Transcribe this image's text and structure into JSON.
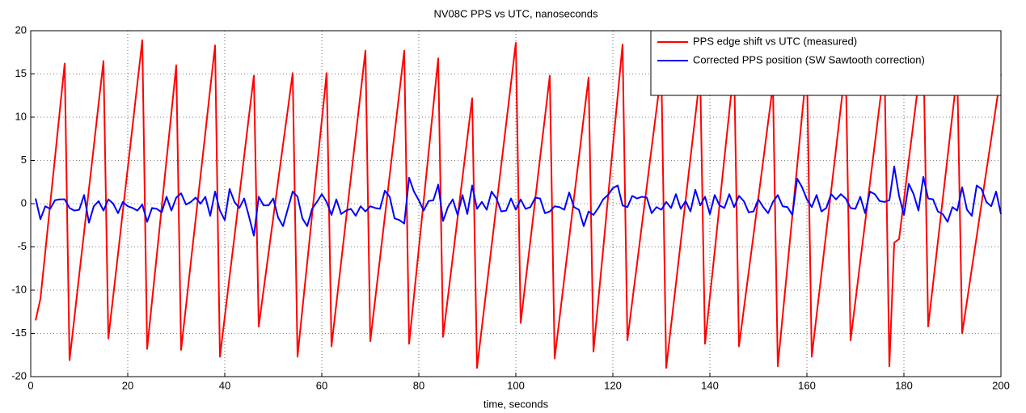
{
  "chart_data": {
    "type": "line",
    "title": "NV08C PPS vs UTC, nanoseconds",
    "xlabel": "time, seconds",
    "x": [
      1,
      2,
      3,
      4,
      5,
      6,
      7,
      8,
      9,
      10,
      11,
      12,
      13,
      14,
      15,
      16,
      17,
      18,
      19,
      20,
      21,
      22,
      23,
      24,
      25,
      26,
      27,
      28,
      29,
      30,
      31,
      32,
      33,
      34,
      35,
      36,
      37,
      38,
      39,
      40,
      41,
      42,
      43,
      44,
      45,
      46,
      47,
      48,
      49,
      50,
      51,
      52,
      53,
      54,
      55,
      56,
      57,
      58,
      59,
      60,
      61,
      62,
      63,
      64,
      65,
      66,
      67,
      68,
      69,
      70,
      71,
      72,
      73,
      74,
      75,
      76,
      77,
      78,
      79,
      80,
      81,
      82,
      83,
      84,
      85,
      86,
      87,
      88,
      89,
      90,
      91,
      92,
      93,
      94,
      95,
      96,
      97,
      98,
      99,
      100,
      101,
      102,
      103,
      104,
      105,
      106,
      107,
      108,
      109,
      110,
      111,
      112,
      113,
      114,
      115,
      116,
      117,
      118,
      119,
      120,
      121,
      122,
      123,
      124,
      125,
      126,
      127,
      128,
      129,
      130,
      131,
      132,
      133,
      134,
      135,
      136,
      137,
      138,
      139,
      140,
      141,
      142,
      143,
      144,
      145,
      146,
      147,
      148,
      149,
      150,
      151,
      152,
      153,
      154,
      155,
      156,
      157,
      158,
      159,
      160,
      161,
      162,
      163,
      164,
      165,
      166,
      167,
      168,
      169,
      170,
      171,
      172,
      173,
      174,
      175,
      176,
      177,
      178,
      179,
      180,
      181,
      182,
      183,
      184,
      185,
      186,
      187,
      188,
      189,
      190,
      191,
      192,
      193,
      194,
      195,
      196,
      197,
      198,
      199,
      200
    ],
    "series": [
      {
        "name": "PPS edge shift vs UTC (measured)",
        "color": "#ff0000",
        "values": [
          -13.5,
          -11.0,
          -5.6,
          -0.1,
          5.3,
          10.8,
          16.2,
          -18.1,
          -13.2,
          -8.2,
          -3.3,
          1.7,
          6.6,
          11.6,
          16.5,
          -15.6,
          -10.7,
          -5.8,
          -0.8,
          4.1,
          9.0,
          14.0,
          18.9,
          -16.8,
          -11.3,
          -5.9,
          -0.4,
          5.1,
          10.5,
          16.0,
          -16.9,
          -11.9,
          -6.8,
          -1.8,
          3.2,
          8.2,
          13.3,
          18.3,
          -17.7,
          -13.1,
          -8.4,
          -3.8,
          0.9,
          5.5,
          10.2,
          14.8,
          -14.2,
          -10.0,
          -5.8,
          -1.6,
          2.6,
          6.8,
          10.9,
          15.1,
          -17.7,
          -12.2,
          -6.8,
          -1.3,
          4.2,
          9.6,
          15.1,
          -16.5,
          -11.6,
          -6.7,
          -1.8,
          3.0,
          7.9,
          12.8,
          17.7,
          -15.9,
          -11.1,
          -6.3,
          -1.5,
          3.3,
          8.1,
          12.9,
          17.7,
          -16.2,
          -10.7,
          -5.2,
          0.3,
          5.8,
          11.3,
          16.8,
          -15.4,
          -10.8,
          -6.2,
          -1.6,
          3.0,
          7.6,
          12.2,
          -19.0,
          -14.3,
          -9.6,
          -4.9,
          -0.2,
          4.5,
          9.2,
          13.9,
          18.6,
          -13.8,
          -9.0,
          -4.3,
          0.5,
          5.3,
          10.0,
          14.8,
          -17.9,
          -13.3,
          -8.6,
          -4.0,
          0.7,
          5.3,
          10.0,
          14.6,
          -17.1,
          -11.2,
          -5.3,
          0.7,
          6.6,
          12.5,
          18.4,
          -15.8,
          -11.3,
          -6.9,
          -2.4,
          2.0,
          6.5,
          10.9,
          15.4,
          -19.0,
          -14.1,
          -9.3,
          -4.4,
          0.4,
          5.3,
          10.1,
          15.0,
          -16.2,
          -10.8,
          -5.5,
          -0.1,
          5.3,
          10.6,
          16.0,
          -16.5,
          -12.2,
          -7.9,
          -3.6,
          0.7,
          5.0,
          9.4,
          13.7,
          -18.8,
          -13.0,
          -7.2,
          -1.4,
          4.4,
          10.2,
          16.0,
          -17.7,
          -12.9,
          -8.1,
          -3.3,
          1.5,
          6.3,
          11.2,
          16.0,
          -15.8,
          -11.3,
          -6.7,
          -2.2,
          2.4,
          6.9,
          11.5,
          16.0,
          -18.8,
          -4.5,
          -4.1,
          0.4,
          5.0,
          9.5,
          14.0,
          18.5,
          -14.2,
          -9.3,
          -4.4,
          0.5,
          5.4,
          10.3,
          15.2,
          -15.0,
          -11.3,
          -7.5,
          -3.8,
          0.0,
          3.8,
          7.5,
          11.3,
          15.0
        ]
      },
      {
        "name": "Corrected PPS position (SW Sawtooth correction)",
        "color": "#0000ff",
        "values": [
          0.6,
          -1.8,
          -0.3,
          -0.6,
          0.4,
          0.5,
          0.5,
          -0.5,
          -0.8,
          -0.7,
          1.0,
          -2.2,
          -0.3,
          0.3,
          -0.8,
          0.5,
          0.0,
          -1.1,
          0.2,
          -0.3,
          -0.5,
          -0.8,
          -0.1,
          -2.1,
          -0.5,
          -0.6,
          -1.0,
          0.8,
          -0.8,
          0.7,
          1.2,
          -0.1,
          0.2,
          0.7,
          0.0,
          0.8,
          -1.4,
          1.4,
          -0.8,
          -1.9,
          1.7,
          0.2,
          -0.5,
          0.6,
          -1.5,
          -3.7,
          0.8,
          -0.2,
          -0.2,
          0.6,
          -1.6,
          -2.6,
          -0.6,
          1.4,
          0.8,
          -1.7,
          -2.6,
          -0.6,
          0.2,
          1.1,
          0.2,
          -1.3,
          0.5,
          -1.2,
          -0.8,
          -0.6,
          -1.4,
          -0.3,
          -0.9,
          -0.3,
          -0.5,
          -0.6,
          1.5,
          0.8,
          -1.7,
          -1.9,
          -2.3,
          3.0,
          1.4,
          0.4,
          -0.8,
          0.3,
          0.4,
          2.2,
          -2.0,
          -0.4,
          0.5,
          -1.3,
          1.0,
          -1.2,
          2.1,
          -0.6,
          0.2,
          -0.7,
          1.4,
          0.6,
          -0.9,
          -0.8,
          0.6,
          -0.7,
          0.5,
          -0.6,
          -0.4,
          0.7,
          0.6,
          -1.1,
          -0.9,
          -0.3,
          -0.4,
          -0.7,
          1.3,
          -0.4,
          -0.7,
          -2.6,
          -0.9,
          -1.3,
          -0.5,
          0.5,
          1.0,
          1.8,
          2.1,
          -0.2,
          -0.4,
          0.9,
          0.6,
          0.8,
          0.7,
          -1.1,
          -0.4,
          -0.7,
          0.2,
          -0.5,
          1.1,
          -0.6,
          0.3,
          -0.9,
          1.6,
          -0.2,
          0.8,
          -1.2,
          1.0,
          -0.2,
          -0.5,
          1.1,
          -0.4,
          0.9,
          0.3,
          -1.0,
          -0.9,
          0.5,
          -0.4,
          -1.1,
          0.2,
          1.0,
          -0.3,
          -0.4,
          -1.3,
          2.9,
          1.9,
          0.5,
          -0.4,
          1.0,
          -0.9,
          -0.5,
          1.1,
          0.5,
          1.1,
          0.6,
          -0.5,
          -0.6,
          0.8,
          -1.1,
          1.4,
          1.1,
          0.3,
          0.2,
          0.4,
          4.3,
          0.9,
          -1.3,
          2.3,
          1.1,
          -0.8,
          3.1,
          0.6,
          0.5,
          -0.9,
          -1.2,
          -2.1,
          -0.4,
          -0.8,
          1.9,
          -0.7,
          -1.4,
          2.1,
          1.7,
          0.2,
          -0.3,
          1.4,
          -1.2
        ]
      }
    ],
    "xlim": [
      0,
      200
    ],
    "xticks": [
      0,
      20,
      40,
      60,
      80,
      100,
      120,
      140,
      160,
      180,
      200
    ],
    "ylim": [
      -20,
      20
    ],
    "yticks": [
      -20,
      -15,
      -10,
      -5,
      0,
      5,
      10,
      15,
      20
    ],
    "grid": true,
    "legend": "upper-right"
  }
}
